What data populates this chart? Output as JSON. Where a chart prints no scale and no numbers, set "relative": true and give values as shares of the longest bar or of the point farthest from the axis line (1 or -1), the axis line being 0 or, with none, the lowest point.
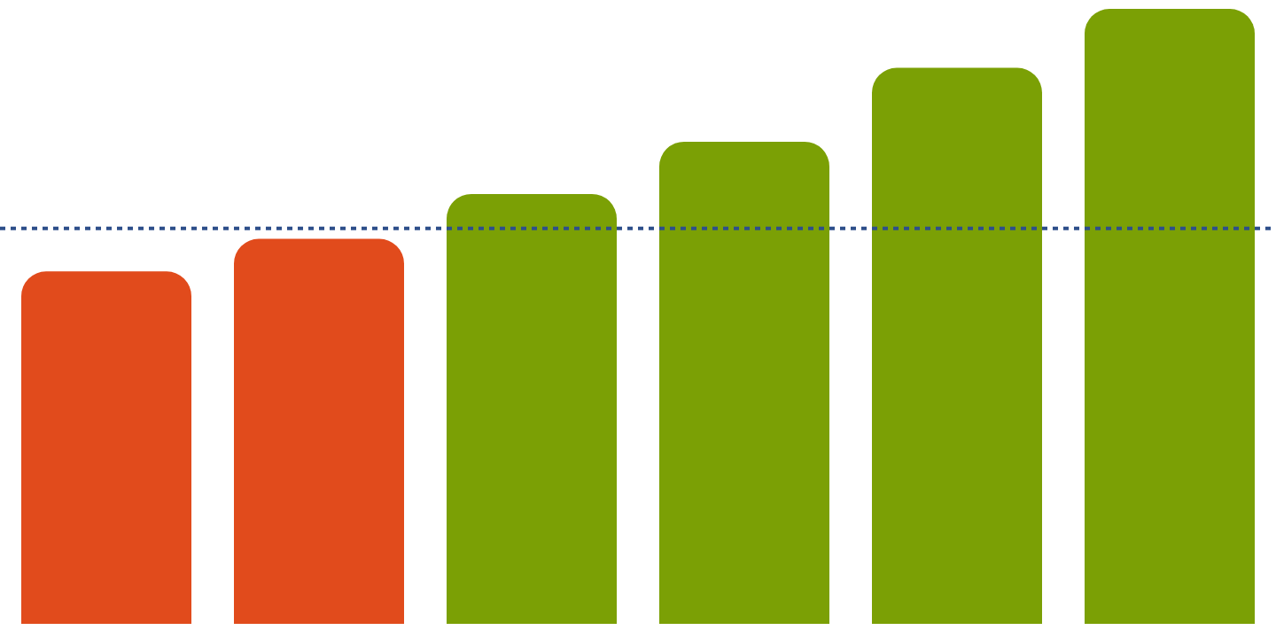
{
  "chart_data": {
    "type": "bar",
    "relative": true,
    "categories": [
      null,
      null,
      null,
      null,
      null,
      null
    ],
    "values": [
      0.573,
      0.626,
      0.699,
      0.784,
      0.904,
      1
    ],
    "colors": [
      "#e14b1c",
      "#e14b1c",
      "#7ba005",
      "#7ba005",
      "#7ba005",
      "#7ba005"
    ],
    "ref_lines": [
      {
        "axis": "y",
        "value": 0.643,
        "color": "#2e4f8a",
        "line_style": "dotted"
      }
    ]
  }
}
